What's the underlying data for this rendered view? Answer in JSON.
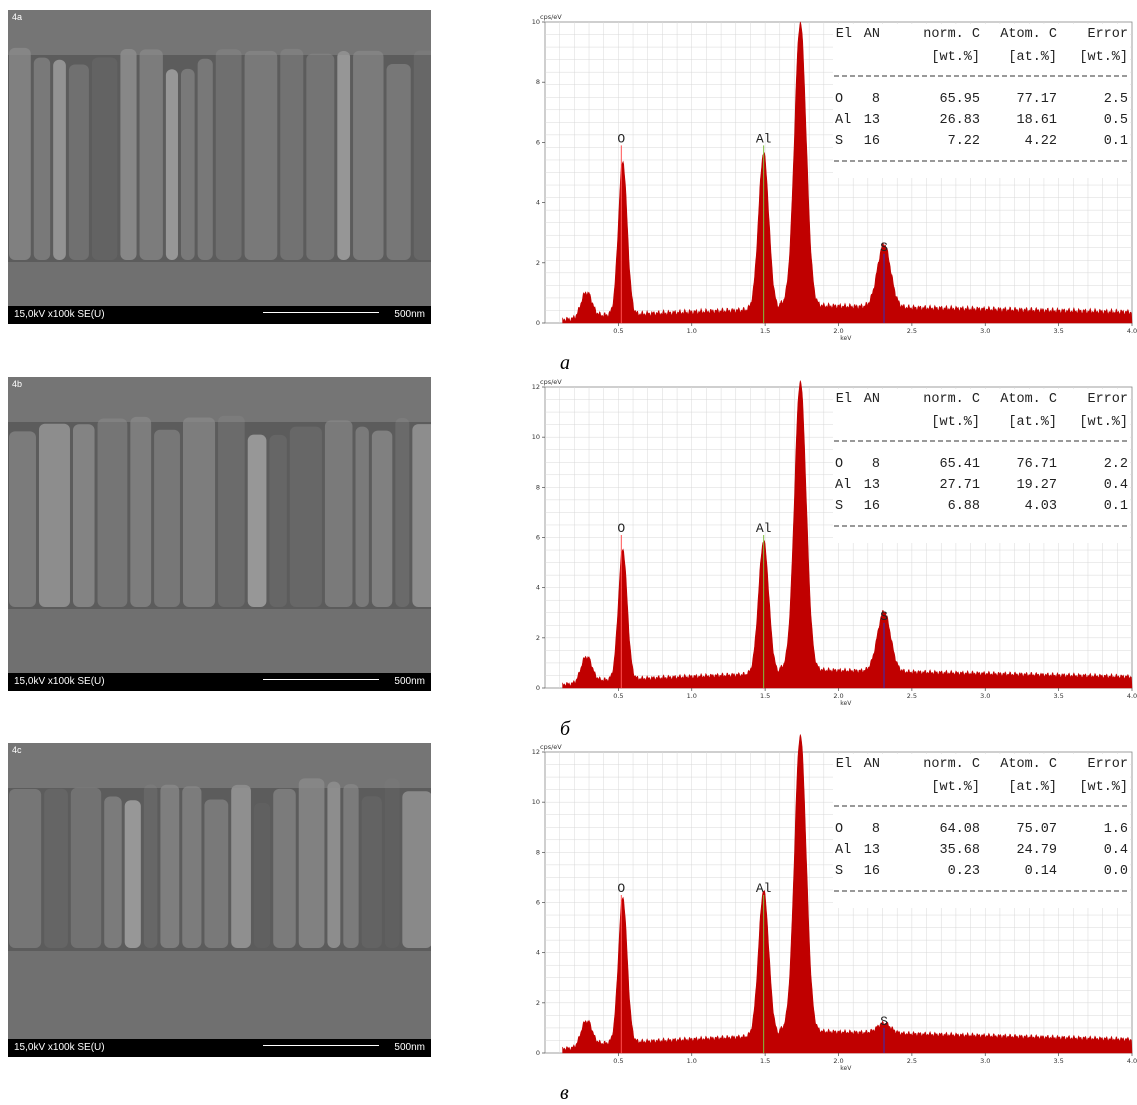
{
  "sem_images": [
    {
      "tag": "4a",
      "info": "15,0kV x100k SE(U)",
      "scale": "500nm"
    },
    {
      "tag": "4b",
      "info": "15,0kV x100k SE(U)",
      "scale": "500nm"
    },
    {
      "tag": "4c",
      "info": "15,0kV x100k SE(U)",
      "scale": "500nm"
    }
  ],
  "captions": [
    "a",
    "б",
    "в"
  ],
  "colors": {
    "spectrum_fill": "#c00000",
    "grid": "#d8d8d8",
    "s_line": "#3030c0",
    "o_line": "#ff5050",
    "al_line": "#80c040"
  },
  "chart_data": [
    {
      "type": "area",
      "ylabel": "cps/eV",
      "xlabel": "keV",
      "xlim": [
        0,
        4.0
      ],
      "ylim": [
        0,
        10
      ],
      "x_ticks": [
        "0.5",
        "1.0",
        "1.5",
        "2.0",
        "2.5",
        "3.0",
        "3.5",
        "4.0"
      ],
      "y_ticks": [
        "0",
        "2",
        "4",
        "6",
        "8",
        "10"
      ],
      "peaks": [
        {
          "label": "",
          "x": 0.28,
          "y": 0.9
        },
        {
          "label": "O",
          "x": 0.53,
          "y": 5.1
        },
        {
          "label": "Al",
          "x": 1.49,
          "y": 5.2
        },
        {
          "label": "",
          "x": 1.74,
          "y": 9.4
        },
        {
          "label": "S",
          "x": 2.31,
          "y": 2.1
        }
      ],
      "baseline": 0.4,
      "element_markers": [
        {
          "label": "O",
          "x": 0.52,
          "y": 5.9
        },
        {
          "label": "Al",
          "x": 1.49,
          "y": 5.9
        },
        {
          "label": "S",
          "x": 2.31,
          "y": 2.3
        }
      ],
      "table": {
        "header1": [
          "El",
          "AN",
          "norm. C",
          "Atom. C",
          "Error"
        ],
        "header2": [
          "",
          "",
          "[wt.%]",
          "[at.%]",
          "[wt.%]"
        ],
        "rows": [
          [
            "O",
            "8",
            "65.95",
            "77.17",
            "2.5"
          ],
          [
            "Al",
            "13",
            "26.83",
            "18.61",
            "0.5"
          ],
          [
            "S",
            "16",
            "7.22",
            "4.22",
            "0.1"
          ]
        ]
      }
    },
    {
      "type": "area",
      "ylabel": "cps/eV",
      "xlabel": "keV",
      "xlim": [
        0,
        4.0
      ],
      "ylim": [
        0,
        12
      ],
      "x_ticks": [
        "0.5",
        "1.0",
        "1.5",
        "2.0",
        "2.5",
        "3.0",
        "3.5",
        "4.0"
      ],
      "y_ticks": [
        "0",
        "2",
        "4",
        "6",
        "8",
        "10",
        "12"
      ],
      "peaks": [
        {
          "label": "",
          "x": 0.28,
          "y": 1.1
        },
        {
          "label": "O",
          "x": 0.53,
          "y": 5.2
        },
        {
          "label": "Al",
          "x": 1.49,
          "y": 5.3
        },
        {
          "label": "",
          "x": 1.74,
          "y": 11.5
        },
        {
          "label": "S",
          "x": 2.31,
          "y": 2.4
        }
      ],
      "baseline": 0.5,
      "element_markers": [
        {
          "label": "O",
          "x": 0.52,
          "y": 6.1
        },
        {
          "label": "Al",
          "x": 1.49,
          "y": 6.1
        },
        {
          "label": "S",
          "x": 2.31,
          "y": 2.6
        }
      ],
      "table": {
        "header1": [
          "El",
          "AN",
          "norm. C",
          "Atom. C",
          "Error"
        ],
        "header2": [
          "",
          "",
          "[wt.%]",
          "[at.%]",
          "[wt.%]"
        ],
        "rows": [
          [
            "O",
            "8",
            "65.41",
            "76.71",
            "2.2"
          ],
          [
            "Al",
            "13",
            "27.71",
            "19.27",
            "0.4"
          ],
          [
            "S",
            "16",
            "6.88",
            "4.03",
            "0.1"
          ]
        ]
      }
    },
    {
      "type": "area",
      "ylabel": "cps/eV",
      "xlabel": "keV",
      "xlim": [
        0,
        4.0
      ],
      "ylim": [
        0,
        12
      ],
      "x_ticks": [
        "0.5",
        "1.0",
        "1.5",
        "2.0",
        "2.5",
        "3.0",
        "3.5",
        "4.0"
      ],
      "y_ticks": [
        "0",
        "2",
        "4",
        "6",
        "8",
        "10",
        "12"
      ],
      "peaks": [
        {
          "label": "",
          "x": 0.28,
          "y": 1.1
        },
        {
          "label": "O",
          "x": 0.53,
          "y": 5.8
        },
        {
          "label": "Al",
          "x": 1.49,
          "y": 5.8
        },
        {
          "label": "",
          "x": 1.74,
          "y": 11.8
        },
        {
          "label": "S",
          "x": 2.31,
          "y": 0.4
        }
      ],
      "baseline": 0.6,
      "element_markers": [
        {
          "label": "O",
          "x": 0.52,
          "y": 6.3
        },
        {
          "label": "Al",
          "x": 1.49,
          "y": 6.3
        },
        {
          "label": "S",
          "x": 2.31,
          "y": 1.0
        }
      ],
      "table": {
        "header1": [
          "El",
          "AN",
          "norm. C",
          "Atom. C",
          "Error"
        ],
        "header2": [
          "",
          "",
          "[wt.%]",
          "[at.%]",
          "[wt.%]"
        ],
        "rows": [
          [
            "O",
            "8",
            "64.08",
            "75.07",
            "1.6"
          ],
          [
            "Al",
            "13",
            "35.68",
            "24.79",
            "0.4"
          ],
          [
            "S",
            "16",
            "0.23",
            "0.14",
            "0.0"
          ]
        ]
      }
    }
  ]
}
